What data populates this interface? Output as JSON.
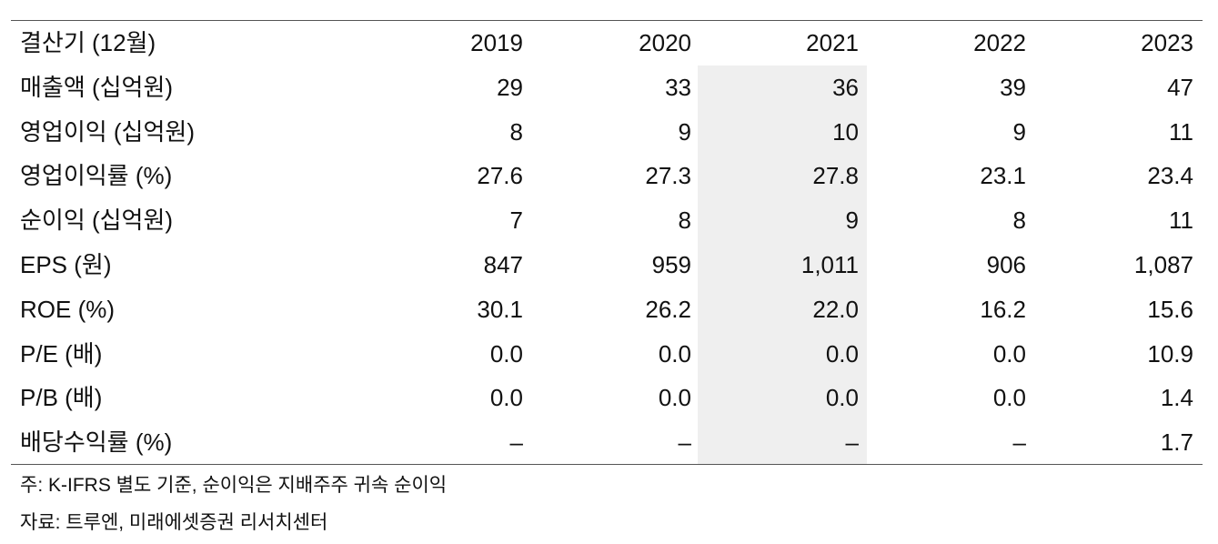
{
  "table": {
    "header": [
      "결산기 (12월)",
      "2019",
      "2020",
      "2021",
      "2022",
      "2023"
    ],
    "rows": [
      [
        "매출액 (십억원)",
        "29",
        "33",
        "36",
        "39",
        "47"
      ],
      [
        "영업이익 (십억원)",
        "8",
        "9",
        "10",
        "9",
        "11"
      ],
      [
        "영업이익률 (%)",
        "27.6",
        "27.3",
        "27.8",
        "23.1",
        "23.4"
      ],
      [
        "순이익 (십억원)",
        "7",
        "8",
        "9",
        "8",
        "11"
      ],
      [
        "EPS (원)",
        "847",
        "959",
        "1,011",
        "906",
        "1,087"
      ],
      [
        "ROE (%)",
        "30.1",
        "26.2",
        "22.0",
        "16.2",
        "15.6"
      ],
      [
        "P/E (배)",
        "0.0",
        "0.0",
        "0.0",
        "0.0",
        "10.9"
      ],
      [
        "P/B (배)",
        "0.0",
        "0.0",
        "0.0",
        "0.0",
        "1.4"
      ],
      [
        "배당수익률 (%)",
        "–",
        "–",
        "–",
        "–",
        "1.7"
      ]
    ]
  },
  "notes": [
    "주: K-IFRS 별도 기준, 순이익은 지배주주 귀속 순이익",
    "자료: 트루엔, 미래에셋증권 리서치센터"
  ]
}
